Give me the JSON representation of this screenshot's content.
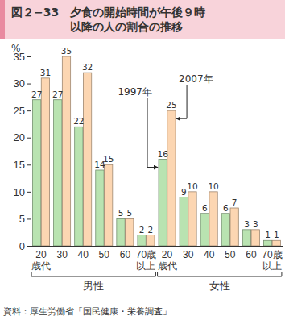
{
  "chart_data": {
    "type": "bar",
    "title": "図２−33　夕食の開始時間が午後９時\n以降の人の割合の推移",
    "y_label": "%",
    "categories": [
      "20\n歳代",
      "30",
      "40",
      "50",
      "60",
      "70歳\n以上",
      "20\n歳代",
      "30",
      "40",
      "50",
      "60",
      "70歳\n以上"
    ],
    "category_groups": [
      "男性",
      "女性"
    ],
    "series": [
      {
        "name": "1997年",
        "color": "#b9e3b1",
        "values": [
          27,
          27,
          22,
          14,
          5,
          2,
          16,
          9,
          6,
          6,
          3,
          1
        ]
      },
      {
        "name": "2007年",
        "color": "#fcd6b2",
        "values": [
          31,
          35,
          32,
          15,
          5,
          2,
          25,
          10,
          10,
          7,
          3,
          1
        ]
      }
    ],
    "ylim": [
      0,
      35
    ],
    "yticks": [
      0,
      5,
      10,
      15,
      20,
      25,
      30,
      35
    ],
    "grid": false,
    "data_labels": true,
    "source": "資料：厚生労働省「国民健康・栄養調査」"
  }
}
